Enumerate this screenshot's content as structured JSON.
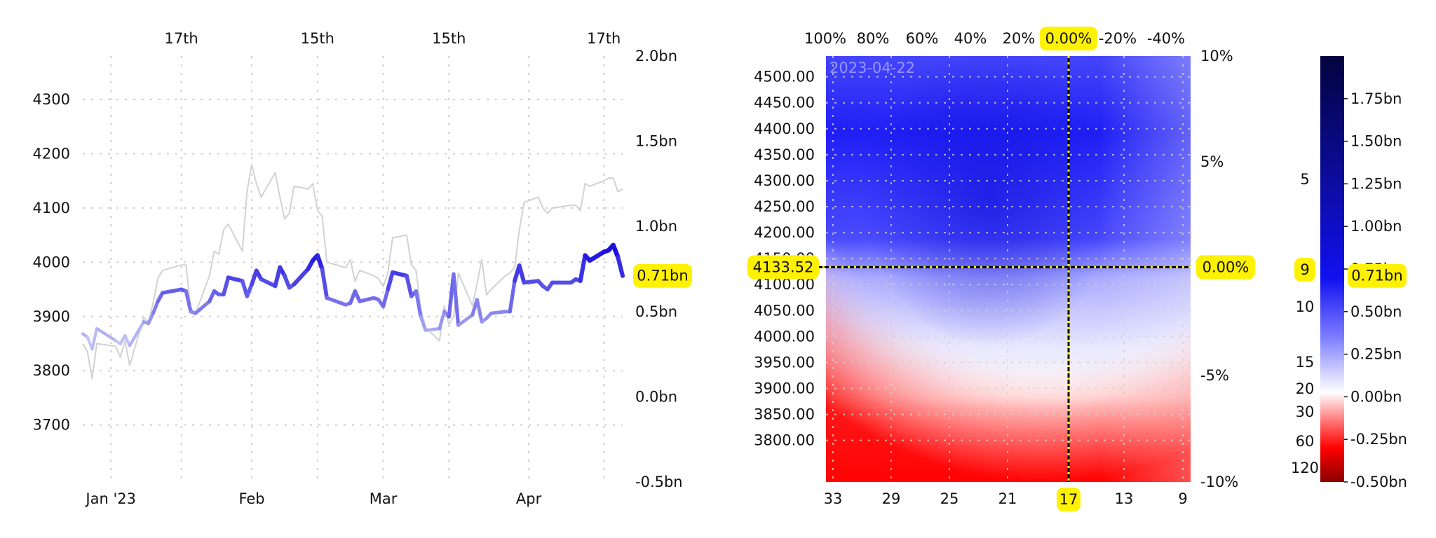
{
  "chart_data": [
    {
      "type": "line",
      "x": [
        "2022-12-27",
        "2022-12-28",
        "2022-12-29",
        "2022-12-30",
        "2023-01-03",
        "2023-01-04",
        "2023-01-05",
        "2023-01-06",
        "2023-01-09",
        "2023-01-10",
        "2023-01-11",
        "2023-01-12",
        "2023-01-13",
        "2023-01-17",
        "2023-01-18",
        "2023-01-19",
        "2023-01-20",
        "2023-01-23",
        "2023-01-24",
        "2023-01-25",
        "2023-01-26",
        "2023-01-27",
        "2023-01-30",
        "2023-01-31",
        "2023-02-01",
        "2023-02-02",
        "2023-02-03",
        "2023-02-06",
        "2023-02-07",
        "2023-02-08",
        "2023-02-09",
        "2023-02-10",
        "2023-02-13",
        "2023-02-14",
        "2023-02-15",
        "2023-02-16",
        "2023-02-17",
        "2023-02-21",
        "2023-02-22",
        "2023-02-23",
        "2023-02-24",
        "2023-02-27",
        "2023-02-28",
        "2023-03-01",
        "2023-03-02",
        "2023-03-03",
        "2023-03-06",
        "2023-03-07",
        "2023-03-08",
        "2023-03-09",
        "2023-03-10",
        "2023-03-13",
        "2023-03-14",
        "2023-03-15",
        "2023-03-16",
        "2023-03-17",
        "2023-03-20",
        "2023-03-21",
        "2023-03-22",
        "2023-03-23",
        "2023-03-24",
        "2023-03-27",
        "2023-03-28",
        "2023-03-29",
        "2023-03-30",
        "2023-03-31",
        "2023-04-03",
        "2023-04-04",
        "2023-04-05",
        "2023-04-06",
        "2023-04-10",
        "2023-04-11",
        "2023-04-12",
        "2023-04-13",
        "2023-04-14",
        "2023-04-17",
        "2023-04-18",
        "2023-04-19",
        "2023-04-20",
        "2023-04-21"
      ],
      "series": [
        {
          "values": [
            3850,
            3835,
            3785,
            3850,
            3845,
            3825,
            3855,
            3810,
            3898,
            3890,
            3925,
            3970,
            3985,
            3995,
            3995,
            3915,
            3905,
            3975,
            4020,
            4015,
            4060,
            4070,
            4020,
            4130,
            4180,
            4145,
            4120,
            4165,
            4120,
            4080,
            4090,
            4140,
            4135,
            4145,
            4095,
            4085,
            4000,
            3990,
            4005,
            3965,
            3985,
            3975,
            3970,
            3955,
            3980,
            4045,
            4050,
            3995,
            3985,
            3915,
            3880,
            3855,
            3920,
            3885,
            3900,
            3980,
            3920,
            3960,
            4005,
            3940,
            3950,
            3975,
            3980,
            3990,
            4060,
            4110,
            4120,
            4100,
            4090,
            4100,
            4105,
            4105,
            4095,
            4145,
            4140,
            4150,
            4155,
            4155,
            4130,
            4135
          ]
        },
        {
          "values": [
            0.37,
            0.35,
            0.28,
            0.4,
            0.33,
            0.31,
            0.36,
            0.3,
            0.44,
            0.43,
            0.49,
            0.56,
            0.61,
            0.63,
            0.62,
            0.5,
            0.49,
            0.56,
            0.62,
            0.6,
            0.6,
            0.7,
            0.68,
            0.59,
            0.66,
            0.74,
            0.69,
            0.65,
            0.76,
            0.71,
            0.64,
            0.66,
            0.75,
            0.8,
            0.83,
            0.75,
            0.58,
            0.54,
            0.55,
            0.62,
            0.56,
            0.58,
            0.57,
            0.53,
            0.63,
            0.73,
            0.71,
            0.59,
            0.62,
            0.47,
            0.39,
            0.4,
            0.5,
            0.47,
            0.72,
            0.42,
            0.48,
            0.57,
            0.44,
            0.46,
            0.49,
            0.5,
            0.5,
            0.68,
            0.77,
            0.67,
            0.68,
            0.65,
            0.63,
            0.67,
            0.67,
            0.69,
            0.68,
            0.83,
            0.8,
            0.85,
            0.86,
            0.89,
            0.82,
            0.71
          ]
        }
      ],
      "xticks_bottom": [
        "Jan '23",
        "Feb",
        "Mar",
        "Apr"
      ],
      "xticks_top": [
        "17th",
        "15th",
        "15th",
        "17th"
      ],
      "yticks_left": [
        "4300",
        "4200",
        "4100",
        "4000",
        "3900",
        "3800",
        "3700"
      ],
      "yticks_right": [
        "2.0bn",
        "1.5bn",
        "1.0bn",
        "0.5bn",
        "0.0bn",
        "-0.5bn"
      ],
      "ylim_left": [
        3595,
        4380
      ],
      "ylim_right": [
        -0.5,
        2.0
      ],
      "highlight_right": "0.71bn",
      "grid": true
    },
    {
      "type": "heatmap",
      "date_label": "2023-04-22",
      "xticks_bottom": [
        "33",
        "29",
        "25",
        "21",
        "17",
        "13",
        "9"
      ],
      "xticks_top": [
        "100%",
        "80%",
        "60%",
        "40%",
        "20%",
        "0.00%",
        "-20%",
        "-40%"
      ],
      "yticks_left": [
        "4500.00",
        "4450.00",
        "4400.00",
        "4350.00",
        "4300.00",
        "4250.00",
        "4200.00",
        "4150.00",
        "4100.00",
        "4050.00",
        "4000.00",
        "3950.00",
        "3900.00",
        "3850.00",
        "3800.00"
      ],
      "yticks_right": [
        "10%",
        "5%",
        "0.00%",
        "-5%",
        "-10%"
      ],
      "ylim": [
        3720,
        4540
      ],
      "crosshair_price": "4133.52",
      "crosshair_pct": "0.00%",
      "crosshair_strike": "17",
      "crosshair_top_pct": "0.00%",
      "grid": true
    },
    {
      "type": "colorbar",
      "ticks_right": [
        "1.75bn",
        "1.50bn",
        "1.25bn",
        "1.00bn",
        "0.75bn",
        "0.50bn",
        "0.25bn",
        "0.00bn",
        "-0.25bn",
        "-0.50bn"
      ],
      "ticks_left": [
        "5",
        "9",
        "10",
        "15",
        "20",
        "30",
        "60",
        "120"
      ],
      "range": [
        -0.5,
        2.0
      ],
      "highlight_right": "0.71bn",
      "highlight_left": "9",
      "colors": {
        "top": "#03033f",
        "mid_high": "#0f0fe6",
        "zero": "#ffffff",
        "low": "#ff0000",
        "bottom": "#8a0000"
      }
    }
  ],
  "colors": {
    "line_accent": "#2a1fe0",
    "line_light": "#c8c8f6",
    "spot": "#d2d2d2",
    "highlight": "#fff200"
  }
}
